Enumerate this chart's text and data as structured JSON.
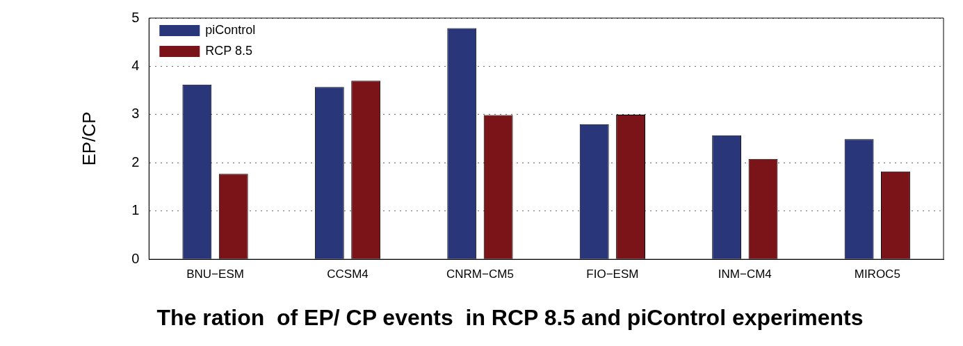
{
  "chart_data": {
    "type": "bar",
    "title": "The ration  of EP/ CP events  in RCP 8.5 and piControl experiments",
    "ylabel": "EP/CP",
    "categories": [
      "BNU−ESM",
      "CCSM4",
      "CNRM−CM5",
      "FIO−ESM",
      "INM−CM4",
      "MIROC5"
    ],
    "series": [
      {
        "name": "piControl",
        "color": "#29377a",
        "values": [
          3.62,
          3.57,
          4.79,
          2.8,
          2.57,
          2.49
        ]
      },
      {
        "name": "RCP 8.5",
        "color": "#7a1419",
        "values": [
          1.77,
          3.7,
          2.99,
          3.0,
          2.08,
          1.82
        ]
      }
    ],
    "ylim": [
      0,
      5
    ],
    "yticks": [
      0,
      1,
      2,
      3,
      4,
      5
    ],
    "grid": "y",
    "legend": "top left"
  }
}
